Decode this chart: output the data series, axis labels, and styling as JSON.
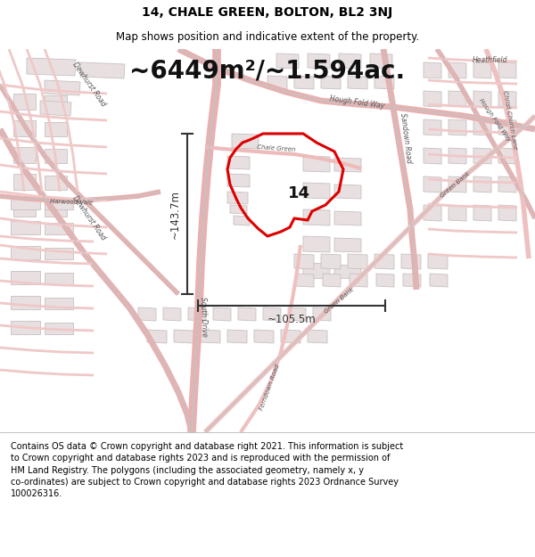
{
  "title_line1": "14, CHALE GREEN, BOLTON, BL2 3NJ",
  "title_line2": "Map shows position and indicative extent of the property.",
  "area_text": "~6449m²/~1.594ac.",
  "label_number": "14",
  "dim_vertical": "~143.7m",
  "dim_horizontal": "~105.5m",
  "footer_text": "Contains OS data © Crown copyright and database right 2021. This information is subject to Crown copyright and database rights 2023 and is reproduced with the permission of HM Land Registry. The polygons (including the associated geometry, namely x, y co-ordinates) are subject to Crown copyright and database rights 2023 Ordnance Survey 100026316.",
  "map_bg": "#ffffff",
  "road_outline_color": "#e8b0b0",
  "road_fill_color": "#f5f0f0",
  "road_gray_color": "#c8c0c0",
  "building_fill": "#e8e0e0",
  "building_edge": "#c8c0c0",
  "property_color": "#dd0000",
  "dim_color": "#333333",
  "text_color": "#555555",
  "title_fontsize": 10,
  "subtitle_fontsize": 8.5,
  "area_fontsize": 20,
  "footer_fontsize": 7,
  "label_fontsize": 13,
  "dim_fontsize": 8.5,
  "road_label_fontsize": 5.5
}
